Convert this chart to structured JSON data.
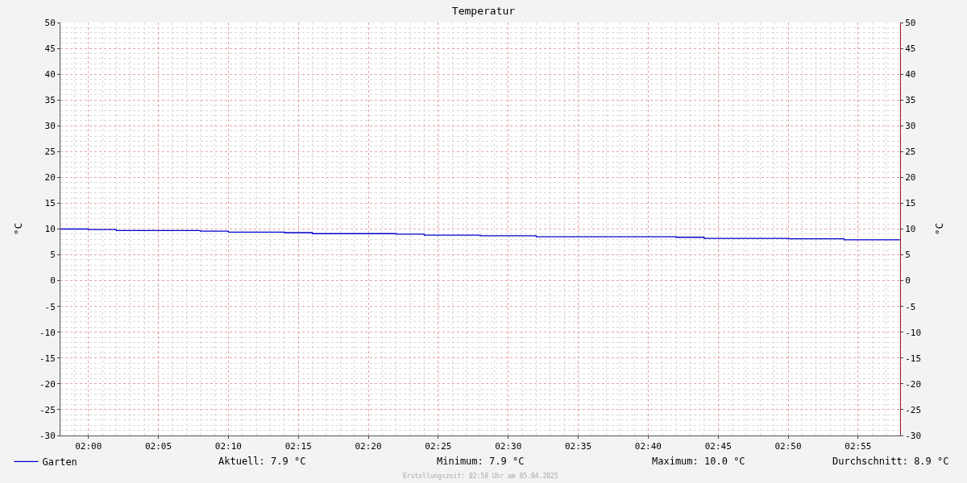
{
  "chart_data": {
    "type": "step",
    "title": "Temperatur",
    "ylabel": "°C",
    "y2label": "°C",
    "x": [
      1.9667,
      2.0,
      2.0333,
      2.1333,
      2.1667,
      2.2333,
      2.2667,
      2.3667,
      2.4,
      2.4667,
      2.5333,
      2.7,
      2.7333,
      2.8333,
      2.9,
      2.9667
    ],
    "series": [
      {
        "name": "Garten",
        "color": "#0000cc",
        "values": [
          10.0,
          9.9,
          9.7,
          9.6,
          9.4,
          9.3,
          9.1,
          9.0,
          8.8,
          8.7,
          8.5,
          8.4,
          8.2,
          8.1,
          7.9,
          7.9
        ]
      }
    ],
    "xlim": [
      1.9667,
      2.9667
    ],
    "xticks": [
      {
        "value": 2.0,
        "label": "02:00"
      },
      {
        "value": 2.0833,
        "label": "02:05"
      },
      {
        "value": 2.1667,
        "label": "02:10"
      },
      {
        "value": 2.25,
        "label": "02:15"
      },
      {
        "value": 2.3333,
        "label": "02:20"
      },
      {
        "value": 2.4167,
        "label": "02:25"
      },
      {
        "value": 2.5,
        "label": "02:30"
      },
      {
        "value": 2.5833,
        "label": "02:35"
      },
      {
        "value": 2.6667,
        "label": "02:40"
      },
      {
        "value": 2.75,
        "label": "02:45"
      },
      {
        "value": 2.8333,
        "label": "02:50"
      },
      {
        "value": 2.9167,
        "label": "02:55"
      }
    ],
    "ylim": [
      -30,
      50
    ],
    "yticks": [
      -30,
      -25,
      -20,
      -15,
      -10,
      -5,
      0,
      5,
      10,
      15,
      20,
      25,
      30,
      35,
      40,
      45,
      50
    ],
    "y2lim": [
      -30,
      50
    ],
    "y2ticks": [
      -30,
      -25,
      -20,
      -15,
      -10,
      -5,
      0,
      5,
      10,
      15,
      20,
      25,
      30,
      35,
      40,
      45,
      50
    ],
    "grid": true,
    "legend": "bottom left",
    "line_style": "solid",
    "marker": "none",
    "annotations": [
      "Aktuell: 7.9 °C",
      "Minimum: 7.9 °C",
      "Maximum: 10.0 °C",
      "Durchschnitt: 8.9 °C",
      "Erstellungszeit: 02:58 Uhr am 05.04.2025"
    ]
  }
}
